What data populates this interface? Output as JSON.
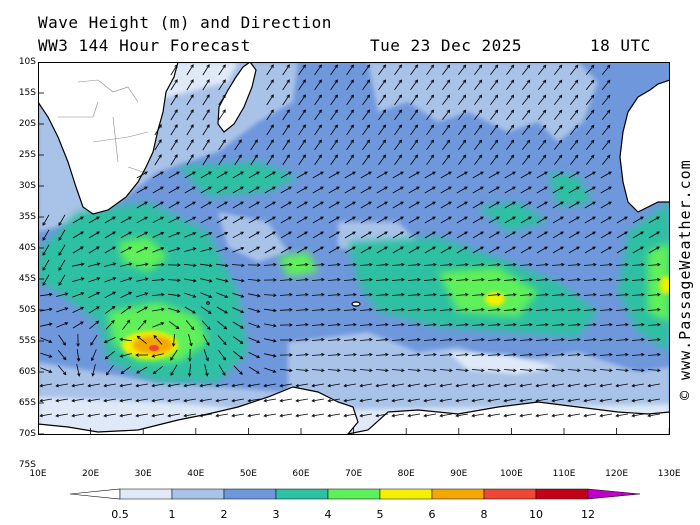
{
  "title": {
    "line1": "Wave Height (m) and Direction",
    "line2": "WW3 144 Hour Forecast",
    "date": "Tue 23 Dec 2025",
    "time": "18 UTC"
  },
  "credit": "© www.PassageWeather.com",
  "axes": {
    "lat_labels": [
      "10S",
      "15S",
      "20S",
      "25S",
      "30S",
      "35S",
      "40S",
      "45S",
      "50S",
      "55S",
      "60S",
      "65S",
      "70S",
      "75S"
    ],
    "lon_labels": [
      "10E",
      "20E",
      "30E",
      "40E",
      "50E",
      "60E",
      "70E",
      "80E",
      "90E",
      "100E",
      "110E",
      "120E",
      "130E"
    ]
  },
  "legend": {
    "labels": [
      "0.5",
      "1",
      "2",
      "3",
      "4",
      "5",
      "6",
      "8",
      "10",
      "12"
    ],
    "colors": [
      "#dfe9f7",
      "#a9c2e8",
      "#6f97dc",
      "#2ec0a2",
      "#5ef05a",
      "#f3f000",
      "#f3a700",
      "#ef4735",
      "#c3021a",
      "#c000c8"
    ],
    "units": "m"
  },
  "colors": {
    "land": "#ffffff",
    "coast": "#000000",
    "arrow": "#000000"
  }
}
